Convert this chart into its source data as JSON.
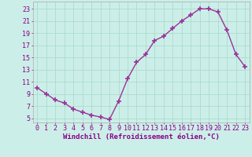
{
  "x": [
    0,
    1,
    2,
    3,
    4,
    5,
    6,
    7,
    8,
    9,
    10,
    11,
    12,
    13,
    14,
    15,
    16,
    17,
    18,
    19,
    20,
    21,
    22,
    23
  ],
  "y": [
    10.0,
    9.0,
    8.0,
    7.5,
    6.5,
    6.0,
    5.5,
    5.2,
    4.8,
    7.8,
    11.5,
    14.2,
    15.5,
    17.8,
    18.5,
    19.8,
    21.0,
    22.0,
    23.0,
    23.0,
    22.5,
    19.5,
    15.5,
    13.5
  ],
  "line_color": "#993399",
  "marker": "+",
  "marker_size": 4,
  "marker_linewidth": 1.2,
  "bg_color": "#cceee8",
  "grid_color": "#aaddcc",
  "xlabel": "Windchill (Refroidissement éolien,°C)",
  "xlabel_fontsize": 6.5,
  "yticks": [
    5,
    7,
    9,
    11,
    13,
    15,
    17,
    19,
    21,
    23
  ],
  "xticks": [
    0,
    1,
    2,
    3,
    4,
    5,
    6,
    7,
    8,
    9,
    10,
    11,
    12,
    13,
    14,
    15,
    16,
    17,
    18,
    19,
    20,
    21,
    22,
    23
  ],
  "ylim": [
    4.3,
    24.2
  ],
  "xlim": [
    -0.5,
    23.5
  ],
  "tick_fontsize": 6.0,
  "tick_color": "#880088",
  "spine_color": "#aaaaaa",
  "linewidth": 1.0
}
